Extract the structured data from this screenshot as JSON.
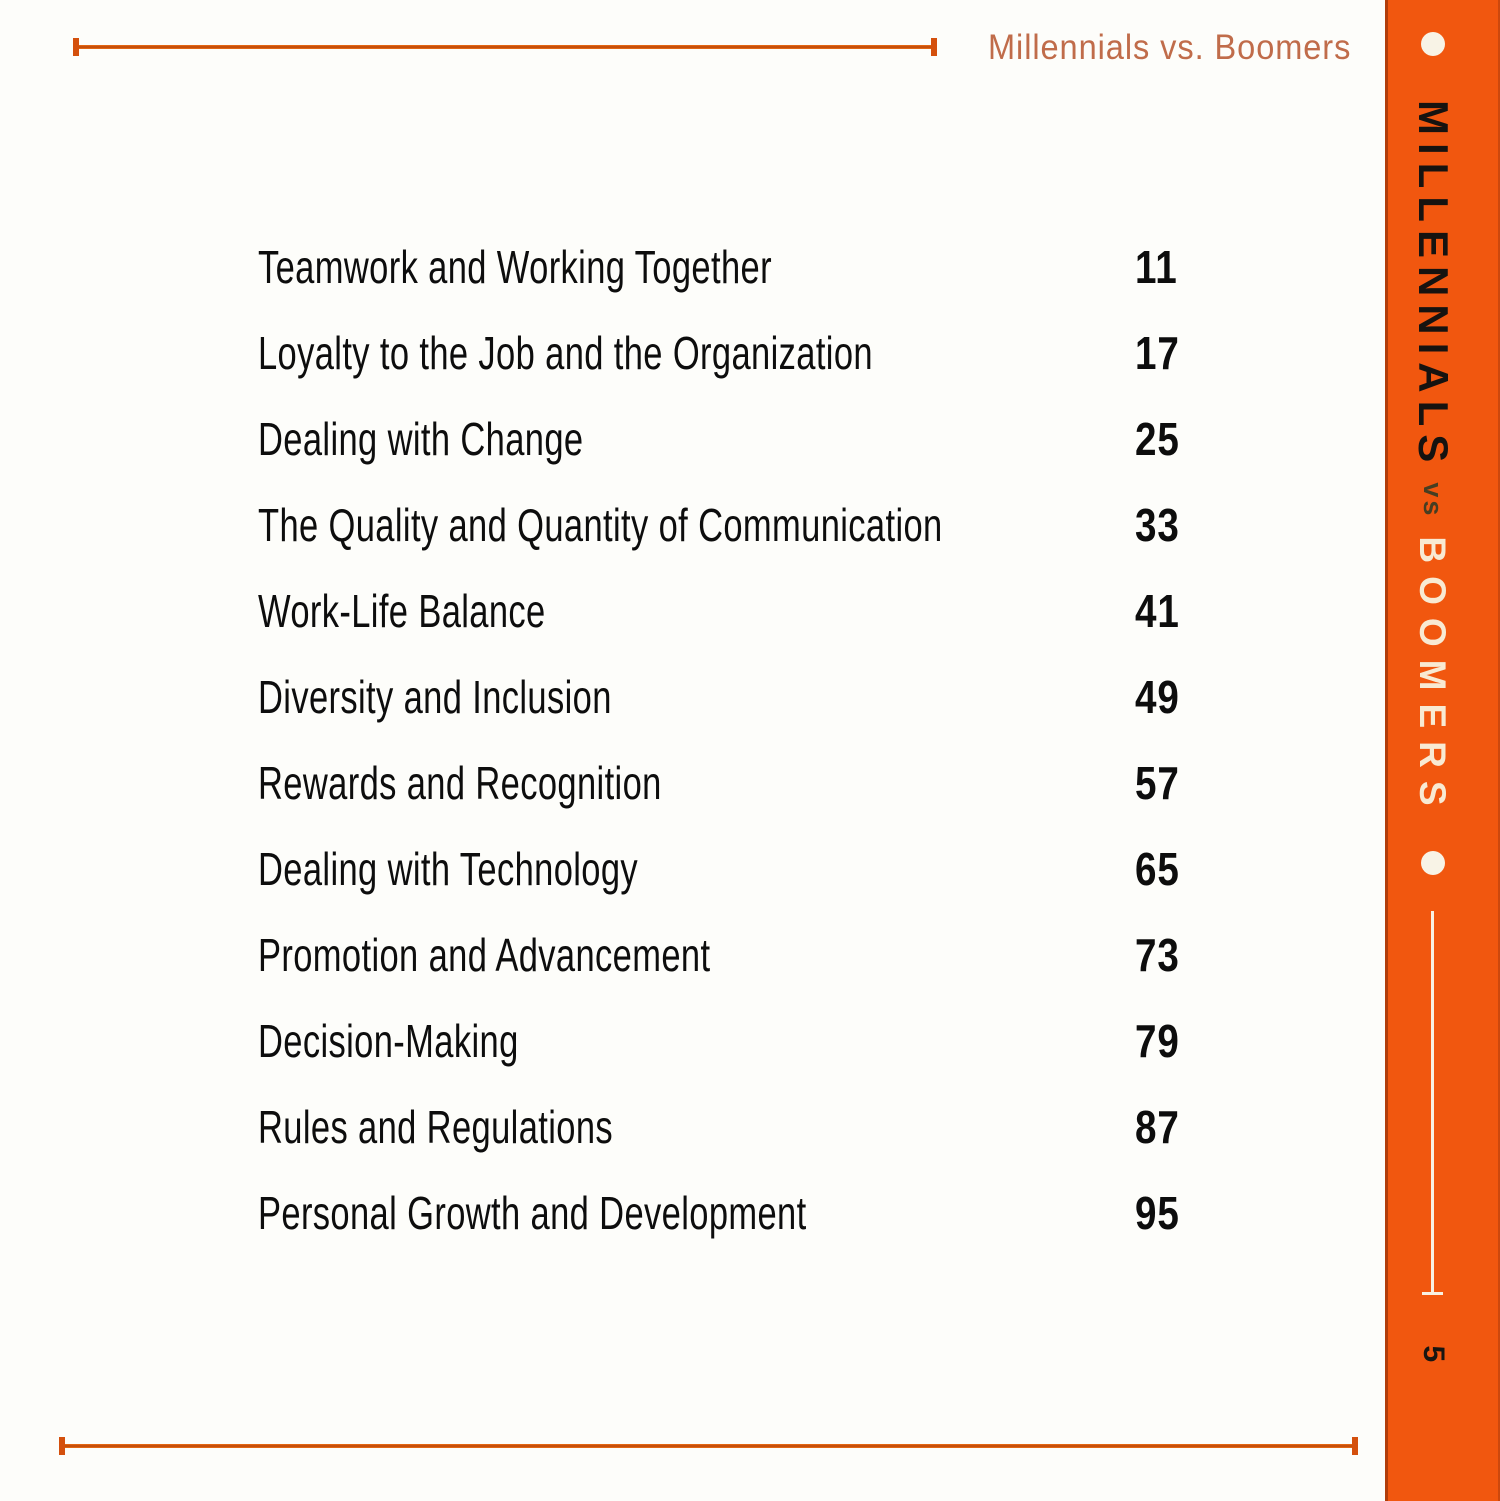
{
  "header": {
    "title": "Millennials vs. Boomers"
  },
  "toc": {
    "entries": [
      {
        "title": "Teamwork and Working Together",
        "page": "11"
      },
      {
        "title": "Loyalty to the Job and the Organization",
        "page": "17"
      },
      {
        "title": "Dealing with Change",
        "page": "25"
      },
      {
        "title": "The Quality and Quantity of Communication",
        "page": "33"
      },
      {
        "title": "Work-Life Balance",
        "page": "41"
      },
      {
        "title": "Diversity and Inclusion",
        "page": "49"
      },
      {
        "title": "Rewards and Recognition",
        "page": "57"
      },
      {
        "title": "Dealing with Technology",
        "page": "65"
      },
      {
        "title": "Promotion and Advancement",
        "page": "73"
      },
      {
        "title": "Decision-Making",
        "page": "79"
      },
      {
        "title": "Rules and Regulations",
        "page": "87"
      },
      {
        "title": "Personal Growth and Development",
        "page": "95"
      }
    ]
  },
  "sidebar": {
    "word_top": "MILLENNIALS",
    "word_vs": "vs",
    "word_bottom": "BOOMERS",
    "page_number": "5"
  },
  "colors": {
    "sidebar_orange": "#F1570F",
    "rule_orange": "#D4500D",
    "header_text": "#C06C4A",
    "cream": "#F8EAD3",
    "vs_dark_olive": "#463E22",
    "text_black": "#0D0D0D"
  }
}
